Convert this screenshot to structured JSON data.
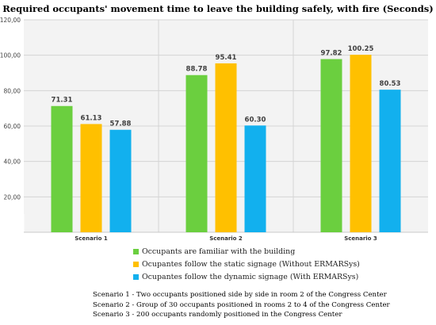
{
  "chart_data": {
    "type": "bar",
    "title": "Required occupants' movement time to leave the building safely, with fire (Seconds)",
    "categories": [
      "Scenario 1",
      "Scenario 2",
      "Scenario 3"
    ],
    "series": [
      {
        "name": "Occupants are familiar with the building",
        "color": "#6bcf3f",
        "values": [
          71.31,
          88.78,
          97.82
        ],
        "labels": [
          "71.31",
          "88.78",
          "97.82"
        ]
      },
      {
        "name": "Ocupantes follow the static signage (Without ERMARSys)",
        "color": "#ffc000",
        "values": [
          61.13,
          95.41,
          100.25
        ],
        "labels": [
          "61.13",
          "95.41",
          "100.25"
        ]
      },
      {
        "name": "Ocupantes follow the dynamic signage (With ERMARSys)",
        "color": "#12b0ee",
        "values": [
          57.88,
          60.3,
          80.53
        ],
        "labels": [
          "57.88",
          "60.30",
          "80.53"
        ]
      }
    ],
    "yticks": [
      "20,00",
      "40,00",
      "60,00",
      "80,00",
      "100,00",
      "120,00"
    ],
    "ylim": [
      0,
      120
    ],
    "grid": true,
    "legend_position": "bottom"
  },
  "notes": [
    "Scenario 1 - Two occupants positioned side by side in room 2 of the Congress Center",
    "Scenario 2 - Group of 30 occupants positioned in rooms 2 to 4 of the Congress Center",
    "Scenario 3 - 200 occupants randomly positioned in the Congress Center"
  ]
}
